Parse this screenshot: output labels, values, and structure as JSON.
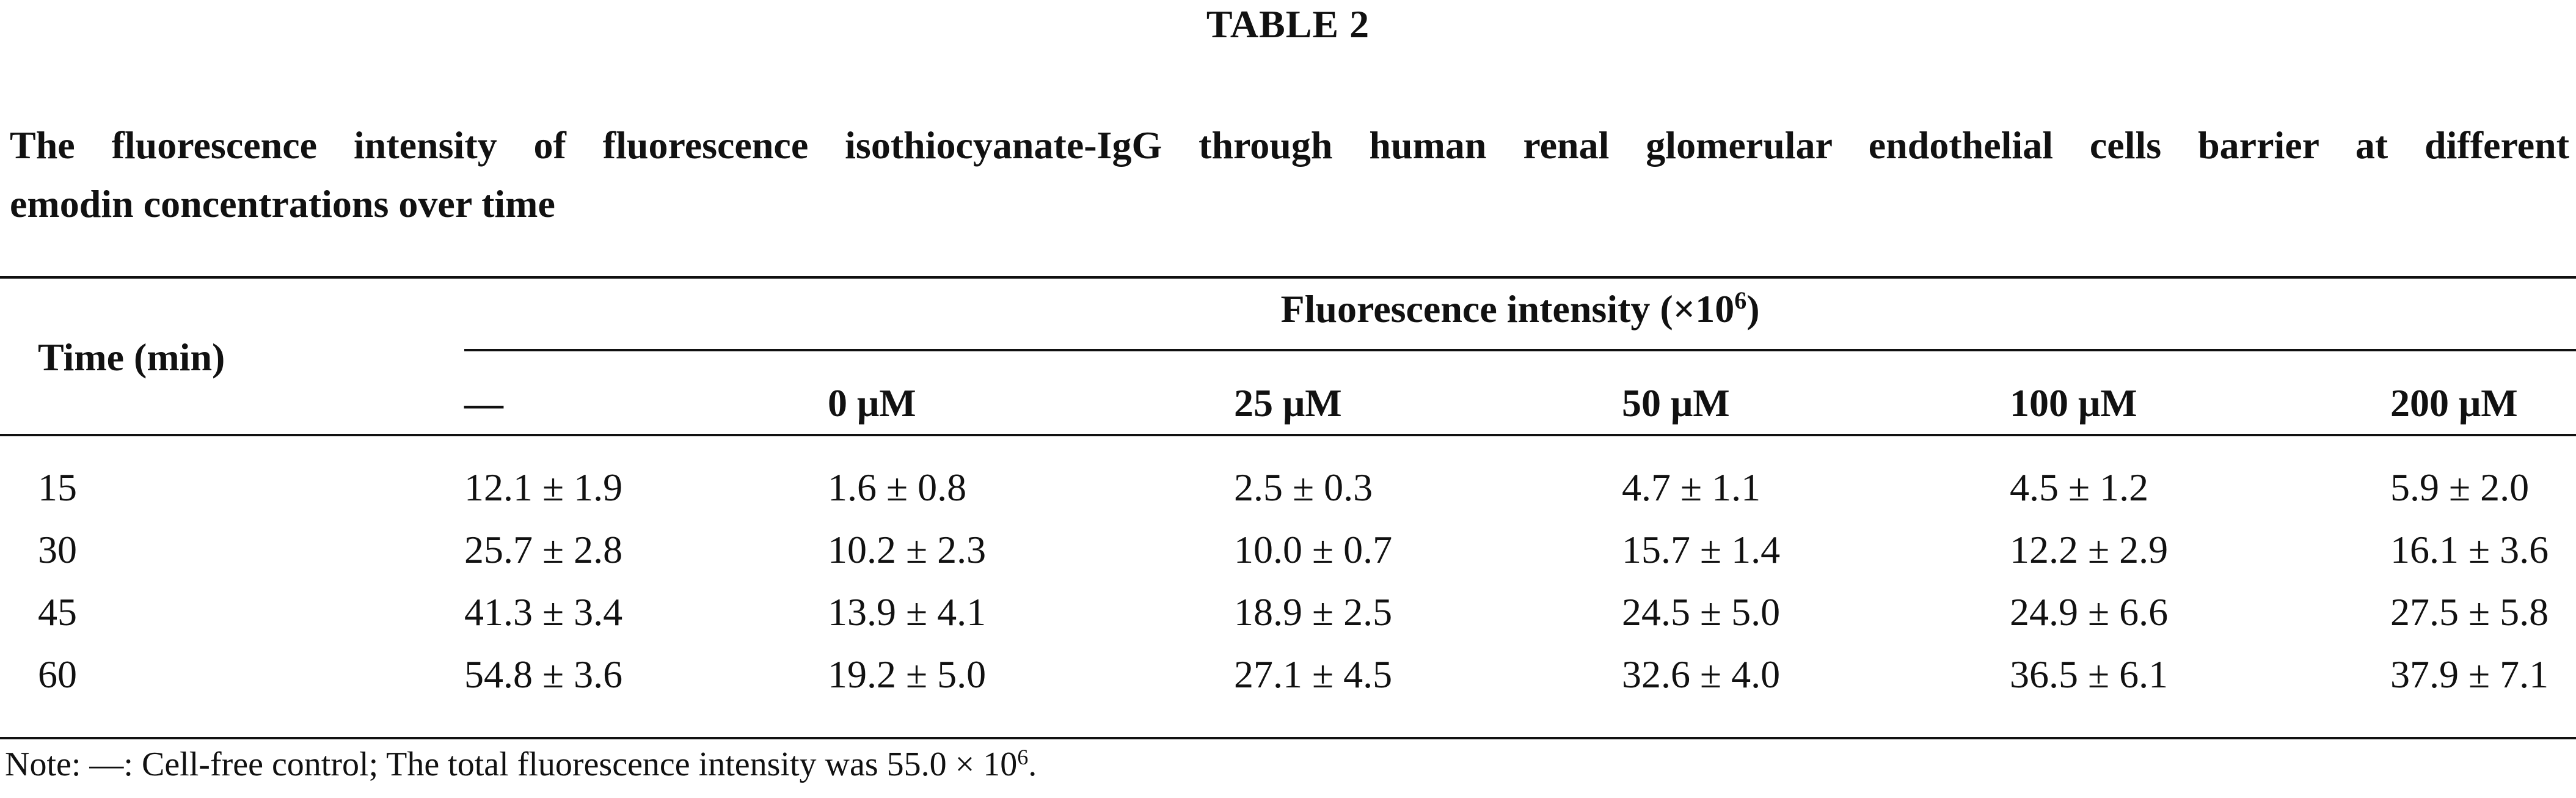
{
  "table": {
    "label": "TABLE 2",
    "caption_line_1": "The fluorescence intensity of fluorescence isothiocyanate-IgG through human renal glomerular endothelial cells barrier at different",
    "caption_line_2": "emodin concentrations over time",
    "row_header": "Time (min)",
    "group_header": "Fluorescence intensity (×10",
    "group_header_exp": "6",
    "group_header_end": ")",
    "columns": [
      "—",
      "0 μM",
      "25 μM",
      "50 μM",
      "100 μM",
      "200 μM"
    ],
    "rows": [
      {
        "time": "15",
        "values": [
          "12.1 ± 1.9",
          "1.6 ± 0.8",
          "2.5 ± 0.3",
          "4.7 ± 1.1",
          "4.5 ± 1.2",
          "5.9 ± 2.0"
        ]
      },
      {
        "time": "30",
        "values": [
          "25.7 ± 2.8",
          "10.2 ± 2.3",
          "10.0 ± 0.7",
          "15.7 ± 1.4",
          "12.2 ± 2.9",
          "16.1 ± 3.6"
        ]
      },
      {
        "time": "45",
        "values": [
          "41.3 ± 3.4",
          "13.9 ± 4.1",
          "18.9 ± 2.5",
          "24.5 ± 5.0",
          "24.9 ± 6.6",
          "27.5 ± 5.8"
        ]
      },
      {
        "time": "60",
        "values": [
          "54.8 ± 3.6",
          "19.2 ± 5.0",
          "27.1 ± 4.5",
          "32.6 ± 4.0",
          "36.5 ± 6.1",
          "37.9 ± 7.1"
        ]
      }
    ],
    "note_text": "Note: —: Cell-free control; The total fluorescence intensity was 55.0 × 10",
    "note_exp": "6",
    "note_end": "."
  }
}
